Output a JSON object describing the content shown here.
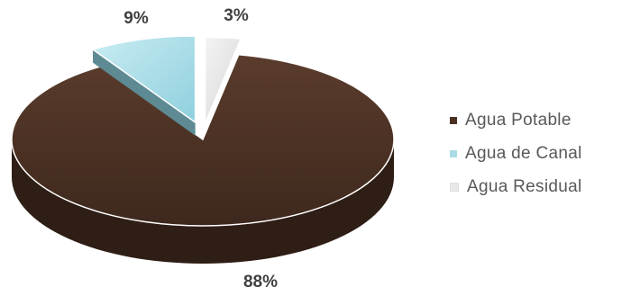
{
  "chart_data": {
    "type": "pie",
    "style": "3d-exploded",
    "title": "",
    "categories": [
      "Agua Potable",
      "Agua de Canal",
      "Agua Residual"
    ],
    "values": [
      88,
      9,
      3
    ],
    "data_labels": [
      "88%",
      "9%",
      "3%"
    ],
    "colors": [
      "#4a3124",
      "#a8dbe6",
      "#e8e8e8"
    ],
    "side_colors": [
      "#2f1e16",
      "#5e8a94",
      "#b5b5b5"
    ],
    "legend_position": "right"
  }
}
